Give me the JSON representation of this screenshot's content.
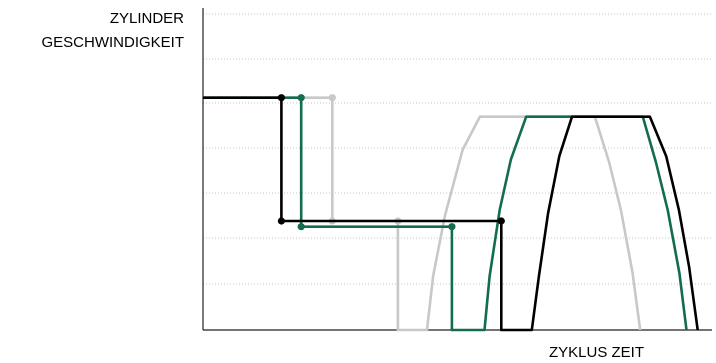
{
  "chart_data": {
    "type": "line",
    "title": "",
    "ylabel_lines": [
      "ZYLINDER",
      "GESCHWINDIGKEIT"
    ],
    "xlabel": "ZYKLUS ZEIT",
    "grid": "horizontal-dotted",
    "x_range": [
      0,
      100
    ],
    "y_range": [
      0,
      100
    ],
    "series": [
      {
        "color": "#c8c8c8",
        "points": [
          [
            0,
            73.5
          ],
          [
            22.4,
            73.5
          ],
          [
            25.4,
            73.5
          ],
          [
            25.4,
            34.5
          ],
          [
            38.3,
            34.5
          ],
          [
            38.3,
            0
          ],
          [
            44,
            0
          ],
          [
            45.2,
            17
          ],
          [
            47.5,
            36
          ],
          [
            51,
            57
          ],
          [
            54.4,
            67.5
          ],
          [
            77,
            67.5
          ],
          [
            79.8,
            53
          ],
          [
            82.1,
            38
          ],
          [
            84.4,
            18
          ],
          [
            85.9,
            0
          ]
        ],
        "markers": [
          [
            25.4,
            73.5
          ],
          [
            25.4,
            34.5
          ],
          [
            38.3,
            34.5
          ]
        ]
      },
      {
        "color": "#136c4b",
        "points": [
          [
            0,
            73.5
          ],
          [
            19.3,
            73.5
          ],
          [
            19.3,
            32.7
          ],
          [
            48.9,
            32.7
          ],
          [
            48.9,
            0
          ],
          [
            55.3,
            0
          ],
          [
            56.3,
            17
          ],
          [
            58.3,
            38
          ],
          [
            60.5,
            54
          ],
          [
            63.5,
            67.5
          ],
          [
            86.4,
            67.5
          ],
          [
            89,
            53
          ],
          [
            91.3,
            38
          ],
          [
            93.6,
            18
          ],
          [
            95,
            0
          ]
        ],
        "markers": [
          [
            19.3,
            73.5
          ],
          [
            19.3,
            32.7
          ],
          [
            48.9,
            32.7
          ]
        ]
      },
      {
        "color": "#000000",
        "points": [
          [
            0,
            73.5
          ],
          [
            15.4,
            73.5
          ],
          [
            15.4,
            34.5
          ],
          [
            58.6,
            34.5
          ],
          [
            58.6,
            0
          ],
          [
            64.6,
            0
          ],
          [
            66,
            17
          ],
          [
            67.8,
            37
          ],
          [
            70,
            55
          ],
          [
            72.5,
            67.5
          ],
          [
            87.8,
            67.5
          ],
          [
            91,
            55
          ],
          [
            93.5,
            38
          ],
          [
            95.5,
            20
          ],
          [
            97.2,
            0
          ]
        ],
        "markers": [
          [
            15.4,
            73.5
          ],
          [
            15.4,
            34.5
          ],
          [
            58.6,
            34.5
          ]
        ]
      }
    ]
  }
}
